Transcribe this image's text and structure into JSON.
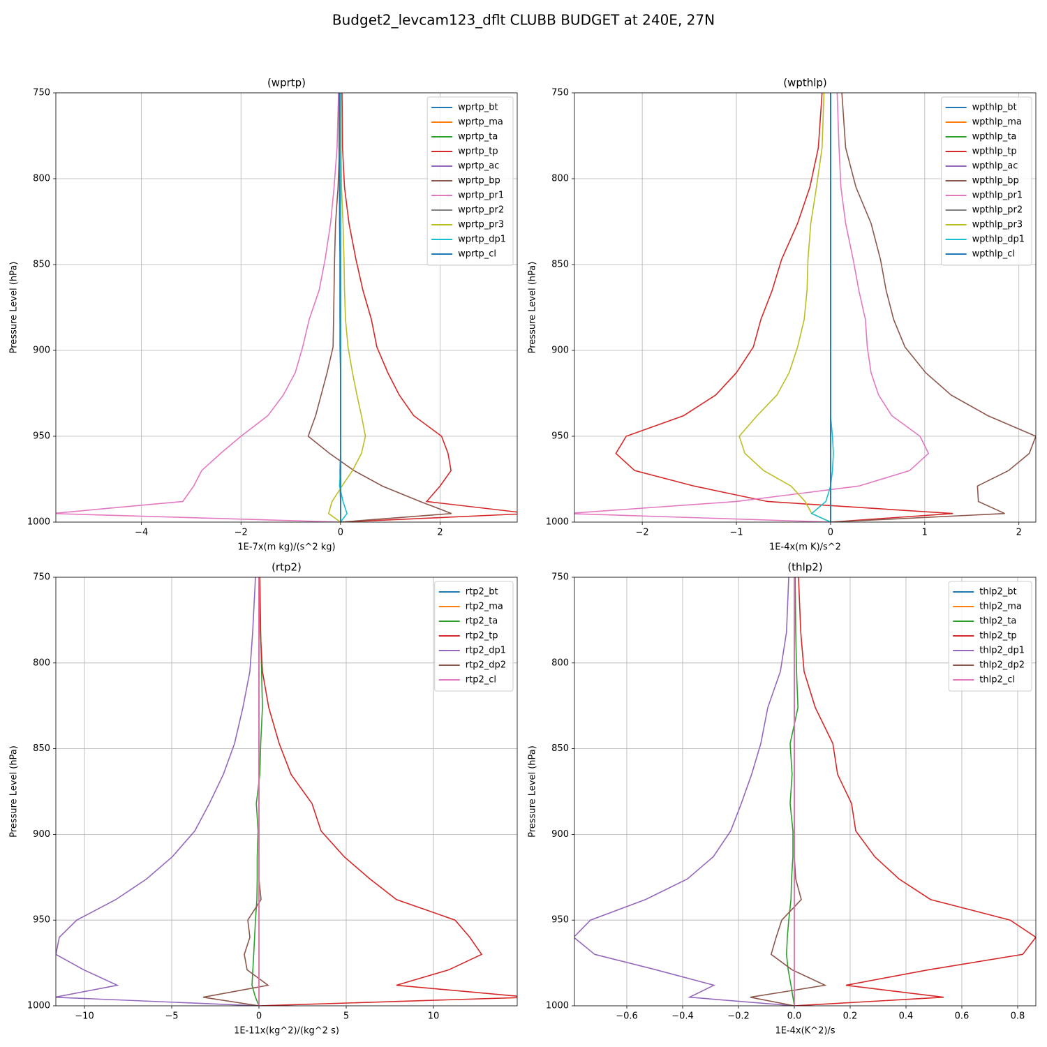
{
  "title": "Budget2_levcam123_dflt CLUBB BUDGET at 240E, 27N",
  "chart_data": [
    {
      "type": "line",
      "title": "(wprtp)",
      "xlabel": "1E-7x(m kg)/(s^2 kg)",
      "ylabel": "Pressure Level (hPa)",
      "y": [
        750,
        782,
        805,
        826,
        847,
        865,
        882,
        898,
        913,
        926,
        938,
        950,
        960,
        970,
        979,
        988,
        995,
        1000
      ],
      "xlim": [
        -5.72,
        3.55
      ],
      "xticks": [
        {
          "value": -4,
          "label": "−4"
        },
        {
          "value": -2,
          "label": "−2"
        },
        0,
        2
      ],
      "ylim": [
        750,
        1000
      ],
      "yticks": [
        750,
        800,
        850,
        900,
        950,
        1000
      ],
      "invert_y": true,
      "grid": true,
      "legend": "upper right",
      "series": [
        {
          "name": "wprtp_bt",
          "color": "#1f77b4",
          "values": [
            -0.02,
            -0.02,
            -0.02,
            -0.01,
            -0.01,
            -0.01,
            -0.01,
            0,
            0,
            0,
            0,
            0,
            0,
            -0.01,
            -0.01,
            0,
            0,
            0
          ]
        },
        {
          "name": "wprtp_ma",
          "color": "#ff7f0e",
          "values": [
            0,
            0,
            0,
            0,
            0,
            0,
            0,
            0,
            0,
            0,
            0,
            0,
            0,
            0,
            0,
            0,
            0,
            0
          ]
        },
        {
          "name": "wprtp_ta",
          "color": "#2ca02c",
          "values": [
            0,
            0,
            0,
            0,
            0,
            0,
            0,
            0,
            0,
            0,
            0,
            0,
            0,
            0,
            0,
            0,
            0,
            0
          ]
        },
        {
          "name": "wprtp_tp",
          "color": "#d62728",
          "values": [
            0.03,
            0.04,
            0.08,
            0.17,
            0.31,
            0.45,
            0.62,
            0.73,
            0.95,
            1.18,
            1.47,
            2.03,
            2.16,
            2.22,
            2.0,
            1.73,
            3.8,
            0
          ]
        },
        {
          "name": "wprtp_ac",
          "color": "#9467bd",
          "values": [
            0,
            0,
            0,
            0,
            0,
            0,
            0,
            0,
            0,
            0,
            0,
            0,
            0,
            0,
            0,
            0,
            0,
            0
          ]
        },
        {
          "name": "wprtp_bp",
          "color": "#8c564b",
          "values": [
            0,
            -0.02,
            -0.05,
            -0.1,
            -0.12,
            -0.13,
            -0.14,
            -0.15,
            -0.27,
            -0.39,
            -0.5,
            -0.65,
            -0.22,
            0.27,
            0.84,
            1.6,
            2.23,
            0
          ]
        },
        {
          "name": "wprtp_pr1",
          "color": "#e377c2",
          "values": [
            -0.04,
            -0.07,
            -0.13,
            -0.2,
            -0.31,
            -0.43,
            -0.63,
            -0.76,
            -0.91,
            -1.15,
            -1.46,
            -2.0,
            -2.41,
            -2.79,
            -2.95,
            -3.17,
            -5.8,
            0
          ]
        },
        {
          "name": "wprtp_pr2",
          "color": "#7f7f7f",
          "values": [
            0,
            0,
            0,
            0,
            0,
            0,
            0,
            0,
            0,
            0,
            0,
            0,
            0,
            0,
            0,
            0,
            0,
            0
          ]
        },
        {
          "name": "wprtp_pr3",
          "color": "#bcbd22",
          "values": [
            0,
            0.01,
            0.02,
            0.05,
            0.07,
            0.08,
            0.1,
            0.15,
            0.24,
            0.33,
            0.42,
            0.5,
            0.42,
            0.24,
            0.03,
            -0.17,
            -0.24,
            0
          ]
        },
        {
          "name": "wprtp_dp1",
          "color": "#17becf",
          "values": [
            0,
            0,
            0,
            0,
            0,
            0,
            0,
            0,
            0,
            0,
            0,
            0,
            0,
            0,
            -0.02,
            0.05,
            0.13,
            0
          ]
        },
        {
          "name": "wprtp_cl",
          "color": "#1f77b4",
          "values": [
            -0.03,
            -0.03,
            -0.02,
            -0.02,
            -0.01,
            -0.01,
            -0.01,
            -0.01,
            0,
            0,
            0,
            0,
            0,
            0,
            0,
            0,
            0,
            0
          ]
        }
      ]
    },
    {
      "type": "line",
      "title": "(wpthlp)",
      "xlabel": "1E-4x(m K)/s^2",
      "ylabel": "Pressure Level (hPa)",
      "y": [
        750,
        782,
        805,
        826,
        847,
        865,
        882,
        898,
        913,
        926,
        938,
        950,
        960,
        970,
        979,
        988,
        995,
        1000
      ],
      "xlim": [
        -2.72,
        2.18
      ],
      "xticks": [
        {
          "value": -2,
          "label": "−2"
        },
        {
          "value": -1,
          "label": "−1"
        },
        0,
        1,
        2
      ],
      "ylim": [
        750,
        1000
      ],
      "yticks": [
        750,
        800,
        850,
        900,
        950,
        1000
      ],
      "invert_y": true,
      "grid": true,
      "legend": "upper right",
      "series": [
        {
          "name": "wpthlp_bt",
          "color": "#1f77b4",
          "values": [
            0,
            0,
            0,
            0,
            0,
            0,
            0,
            0,
            0,
            0,
            0,
            0,
            0,
            0,
            0,
            0,
            0,
            0
          ]
        },
        {
          "name": "wpthlp_ma",
          "color": "#ff7f0e",
          "values": [
            0,
            0,
            0,
            0,
            0,
            0,
            0,
            0,
            0,
            0,
            0,
            0,
            0,
            0,
            0,
            0,
            0,
            0
          ]
        },
        {
          "name": "wpthlp_ta",
          "color": "#2ca02c",
          "values": [
            0,
            0,
            0,
            0,
            0,
            0,
            0,
            0,
            0,
            0,
            0,
            0,
            0,
            0,
            0,
            0,
            0,
            0
          ]
        },
        {
          "name": "wpthlp_tp",
          "color": "#d62728",
          "values": [
            -0.09,
            -0.13,
            -0.22,
            -0.35,
            -0.52,
            -0.62,
            -0.74,
            -0.82,
            -1.0,
            -1.22,
            -1.56,
            -2.17,
            -2.28,
            -2.08,
            -1.45,
            -0.67,
            1.3,
            0
          ]
        },
        {
          "name": "wpthlp_ac",
          "color": "#9467bd",
          "values": [
            0,
            0,
            0,
            0,
            0,
            0,
            0,
            0,
            0,
            0,
            0,
            0,
            0,
            0,
            0,
            0,
            0,
            0
          ]
        },
        {
          "name": "wpthlp_bp",
          "color": "#8c564b",
          "values": [
            0.12,
            0.16,
            0.27,
            0.43,
            0.53,
            0.59,
            0.67,
            0.79,
            1.01,
            1.28,
            1.67,
            2.18,
            2.11,
            1.89,
            1.56,
            1.57,
            1.85,
            0
          ]
        },
        {
          "name": "wpthlp_pr1",
          "color": "#e377c2",
          "values": [
            0.07,
            0.09,
            0.11,
            0.16,
            0.24,
            0.3,
            0.37,
            0.39,
            0.43,
            0.51,
            0.65,
            0.95,
            1.04,
            0.84,
            0.3,
            -1.0,
            -2.8,
            0
          ]
        },
        {
          "name": "wpthlp_pr2",
          "color": "#7f7f7f",
          "values": [
            0,
            0,
            0,
            0,
            0,
            0,
            0,
            0,
            0,
            0,
            0,
            0,
            0,
            0,
            0,
            0,
            0,
            0
          ]
        },
        {
          "name": "wpthlp_pr3",
          "color": "#bcbd22",
          "values": [
            -0.07,
            -0.09,
            -0.15,
            -0.21,
            -0.24,
            -0.25,
            -0.28,
            -0.35,
            -0.44,
            -0.57,
            -0.78,
            -0.97,
            -0.91,
            -0.71,
            -0.42,
            -0.27,
            -0.2,
            0
          ]
        },
        {
          "name": "wpthlp_dp1",
          "color": "#17becf",
          "values": [
            0,
            0,
            0,
            0,
            0,
            0,
            0,
            0,
            0,
            0,
            0,
            0.02,
            0.03,
            0.02,
            0,
            -0.05,
            -0.2,
            0
          ]
        },
        {
          "name": "wpthlp_cl",
          "color": "#1f77b4",
          "values": [
            0,
            0,
            0,
            0,
            0,
            0,
            0,
            0,
            0,
            0,
            0,
            0,
            0,
            0,
            0,
            0,
            0,
            0
          ]
        }
      ]
    },
    {
      "type": "line",
      "title": "(rtp2)",
      "xlabel": "1E-11x(kg^2)/(kg^2 s)",
      "ylabel": "Pressure Level (hPa)",
      "y": [
        750,
        782,
        805,
        826,
        847,
        865,
        882,
        898,
        913,
        926,
        938,
        950,
        960,
        970,
        979,
        988,
        995,
        1000
      ],
      "xlim": [
        -11.64,
        14.8
      ],
      "xticks": [
        {
          "value": -10,
          "label": "−10"
        },
        {
          "value": -5,
          "label": "−5"
        },
        0,
        5,
        10
      ],
      "ylim": [
        750,
        1000
      ],
      "yticks": [
        750,
        800,
        850,
        900,
        950,
        1000
      ],
      "invert_y": true,
      "grid": true,
      "legend": "upper right",
      "series": [
        {
          "name": "rtp2_bt",
          "color": "#1f77b4",
          "values": [
            0,
            0,
            0,
            0,
            0,
            0,
            0,
            0,
            0,
            0,
            0,
            0,
            0,
            0,
            0,
            0,
            0,
            0
          ]
        },
        {
          "name": "rtp2_ma",
          "color": "#ff7f0e",
          "values": [
            0,
            0,
            0,
            0,
            0,
            0,
            0,
            0,
            0,
            0,
            0,
            0,
            0,
            0,
            0,
            0,
            0,
            0
          ]
        },
        {
          "name": "rtp2_ta",
          "color": "#2ca02c",
          "values": [
            0.05,
            0.1,
            0.15,
            0.2,
            0.1,
            0.05,
            -0.15,
            -0.05,
            -0.1,
            -0.1,
            -0.12,
            -0.2,
            -0.25,
            -0.3,
            -0.35,
            -0.4,
            -0.2,
            0
          ]
        },
        {
          "name": "rtp2_tp",
          "color": "#d62728",
          "values": [
            0.04,
            0.08,
            0.2,
            0.56,
            1.16,
            1.84,
            3.04,
            3.56,
            4.88,
            6.36,
            7.88,
            11.24,
            12.08,
            12.76,
            10.88,
            7.88,
            15.5,
            0
          ]
        },
        {
          "name": "rtp2_dp1",
          "color": "#9467bd",
          "values": [
            -0.2,
            -0.36,
            -0.52,
            -0.92,
            -1.4,
            -2.04,
            -2.84,
            -3.68,
            -4.96,
            -6.44,
            -8.2,
            -10.44,
            -11.44,
            -11.64,
            -10.04,
            -8.12,
            -11.7,
            0
          ]
        },
        {
          "name": "rtp2_dp2",
          "color": "#8c564b",
          "values": [
            0,
            0,
            0,
            0,
            0,
            0,
            0,
            0,
            0,
            0,
            0.12,
            -0.64,
            -0.52,
            -0.84,
            -0.68,
            0.52,
            -3.2,
            0
          ]
        },
        {
          "name": "rtp2_cl",
          "color": "#e377c2",
          "values": [
            0,
            0,
            0,
            0,
            0,
            0,
            0,
            0,
            0,
            0,
            0,
            0,
            0,
            0,
            0,
            0,
            0,
            0
          ]
        }
      ]
    },
    {
      "type": "line",
      "title": "(thlp2)",
      "xlabel": "1E-4x(K^2)/s",
      "ylabel": "Pressure Level (hPa)",
      "y": [
        750,
        782,
        805,
        826,
        847,
        865,
        882,
        898,
        913,
        926,
        938,
        950,
        960,
        970,
        979,
        988,
        995,
        1000
      ],
      "xlim": [
        -0.7875,
        0.865
      ],
      "xticks": [
        {
          "value": -0.6,
          "label": "−0.6"
        },
        {
          "value": -0.4,
          "label": "−0.4"
        },
        {
          "value": -0.2,
          "label": "−0.2"
        },
        {
          "value": 0,
          "label": "0.0"
        },
        0.2,
        0.4,
        0.6,
        0.8
      ],
      "ylim": [
        750,
        1000
      ],
      "yticks": [
        750,
        800,
        850,
        900,
        950,
        1000
      ],
      "invert_y": true,
      "grid": true,
      "legend": "upper right",
      "series": [
        {
          "name": "thlp2_bt",
          "color": "#1f77b4",
          "values": [
            0,
            0,
            0,
            0,
            0,
            0,
            0,
            0,
            0,
            0,
            0,
            0,
            0,
            0,
            0,
            0,
            0,
            0
          ]
        },
        {
          "name": "thlp2_ma",
          "color": "#ff7f0e",
          "values": [
            0,
            0,
            0,
            0,
            0,
            0,
            0,
            0,
            0,
            0,
            0,
            0,
            0,
            0,
            0,
            0,
            0,
            0
          ]
        },
        {
          "name": "thlp2_ta",
          "color": "#2ca02c",
          "values": [
            0.003,
            0.005,
            0.008,
            0.013,
            -0.015,
            -0.008,
            -0.015,
            -0.005,
            -0.005,
            -0.01,
            -0.012,
            -0.02,
            -0.025,
            -0.028,
            -0.022,
            -0.012,
            -0.005,
            0
          ]
        },
        {
          "name": "thlp2_tp",
          "color": "#d62728",
          "values": [
            0.015,
            0.023,
            0.035,
            0.075,
            0.138,
            0.155,
            0.205,
            0.22,
            0.288,
            0.375,
            0.488,
            0.773,
            0.865,
            0.818,
            0.48,
            0.185,
            0.535,
            0
          ]
        },
        {
          "name": "thlp2_dp1",
          "color": "#9467bd",
          "values": [
            -0.02,
            -0.028,
            -0.05,
            -0.095,
            -0.12,
            -0.153,
            -0.19,
            -0.228,
            -0.29,
            -0.383,
            -0.533,
            -0.73,
            -0.79,
            -0.715,
            -0.495,
            -0.288,
            -0.375,
            0
          ]
        },
        {
          "name": "thlp2_dp2",
          "color": "#8c564b",
          "values": [
            0,
            0,
            0,
            0,
            0,
            0,
            0,
            0,
            0,
            0.005,
            0.025,
            -0.045,
            -0.065,
            -0.083,
            -0.008,
            0.11,
            -0.158,
            0
          ]
        },
        {
          "name": "thlp2_cl",
          "color": "#e377c2",
          "values": [
            0,
            0,
            0,
            0,
            0,
            0,
            0,
            0,
            0,
            0,
            0,
            0,
            0,
            0,
            0,
            0,
            0,
            0
          ]
        }
      ]
    }
  ]
}
